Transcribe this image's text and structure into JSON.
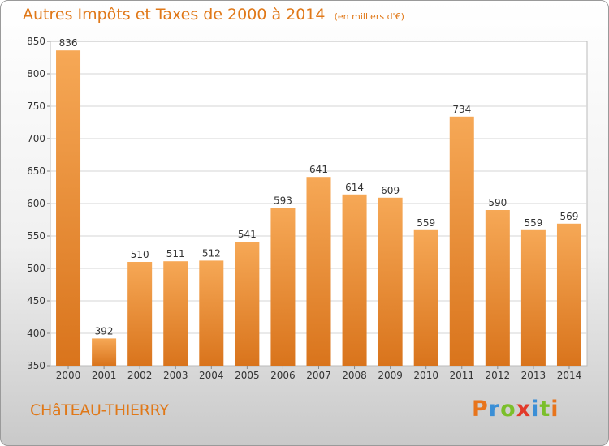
{
  "chart_data": {
    "type": "bar",
    "title": "Autres Impôts et Taxes de 2000 à 2014",
    "subtitle": "(en milliers d'€)",
    "categories": [
      "2000",
      "2001",
      "2002",
      "2003",
      "2004",
      "2005",
      "2006",
      "2007",
      "2008",
      "2009",
      "2010",
      "2011",
      "2012",
      "2013",
      "2014"
    ],
    "values": [
      836,
      392,
      510,
      511,
      512,
      541,
      593,
      641,
      614,
      609,
      559,
      734,
      590,
      559,
      569
    ],
    "ylim": [
      350,
      850
    ],
    "yticks": [
      350,
      400,
      450,
      500,
      550,
      600,
      650,
      700,
      750,
      800,
      850
    ],
    "grid": true,
    "bar_color_top": "#f6a856",
    "bar_color_bottom": "#d9741c"
  },
  "footer": {
    "commune": "CHâTEAU-THIERRY",
    "logo": {
      "letters": [
        "P",
        "r",
        "o",
        "x",
        "i",
        "t",
        "i"
      ],
      "colors": [
        "#e8741b",
        "#3b8fd6",
        "#7bbf2b",
        "#e23a2a",
        "#3b8fd6",
        "#7bbf2b",
        "#e8741b"
      ]
    }
  }
}
